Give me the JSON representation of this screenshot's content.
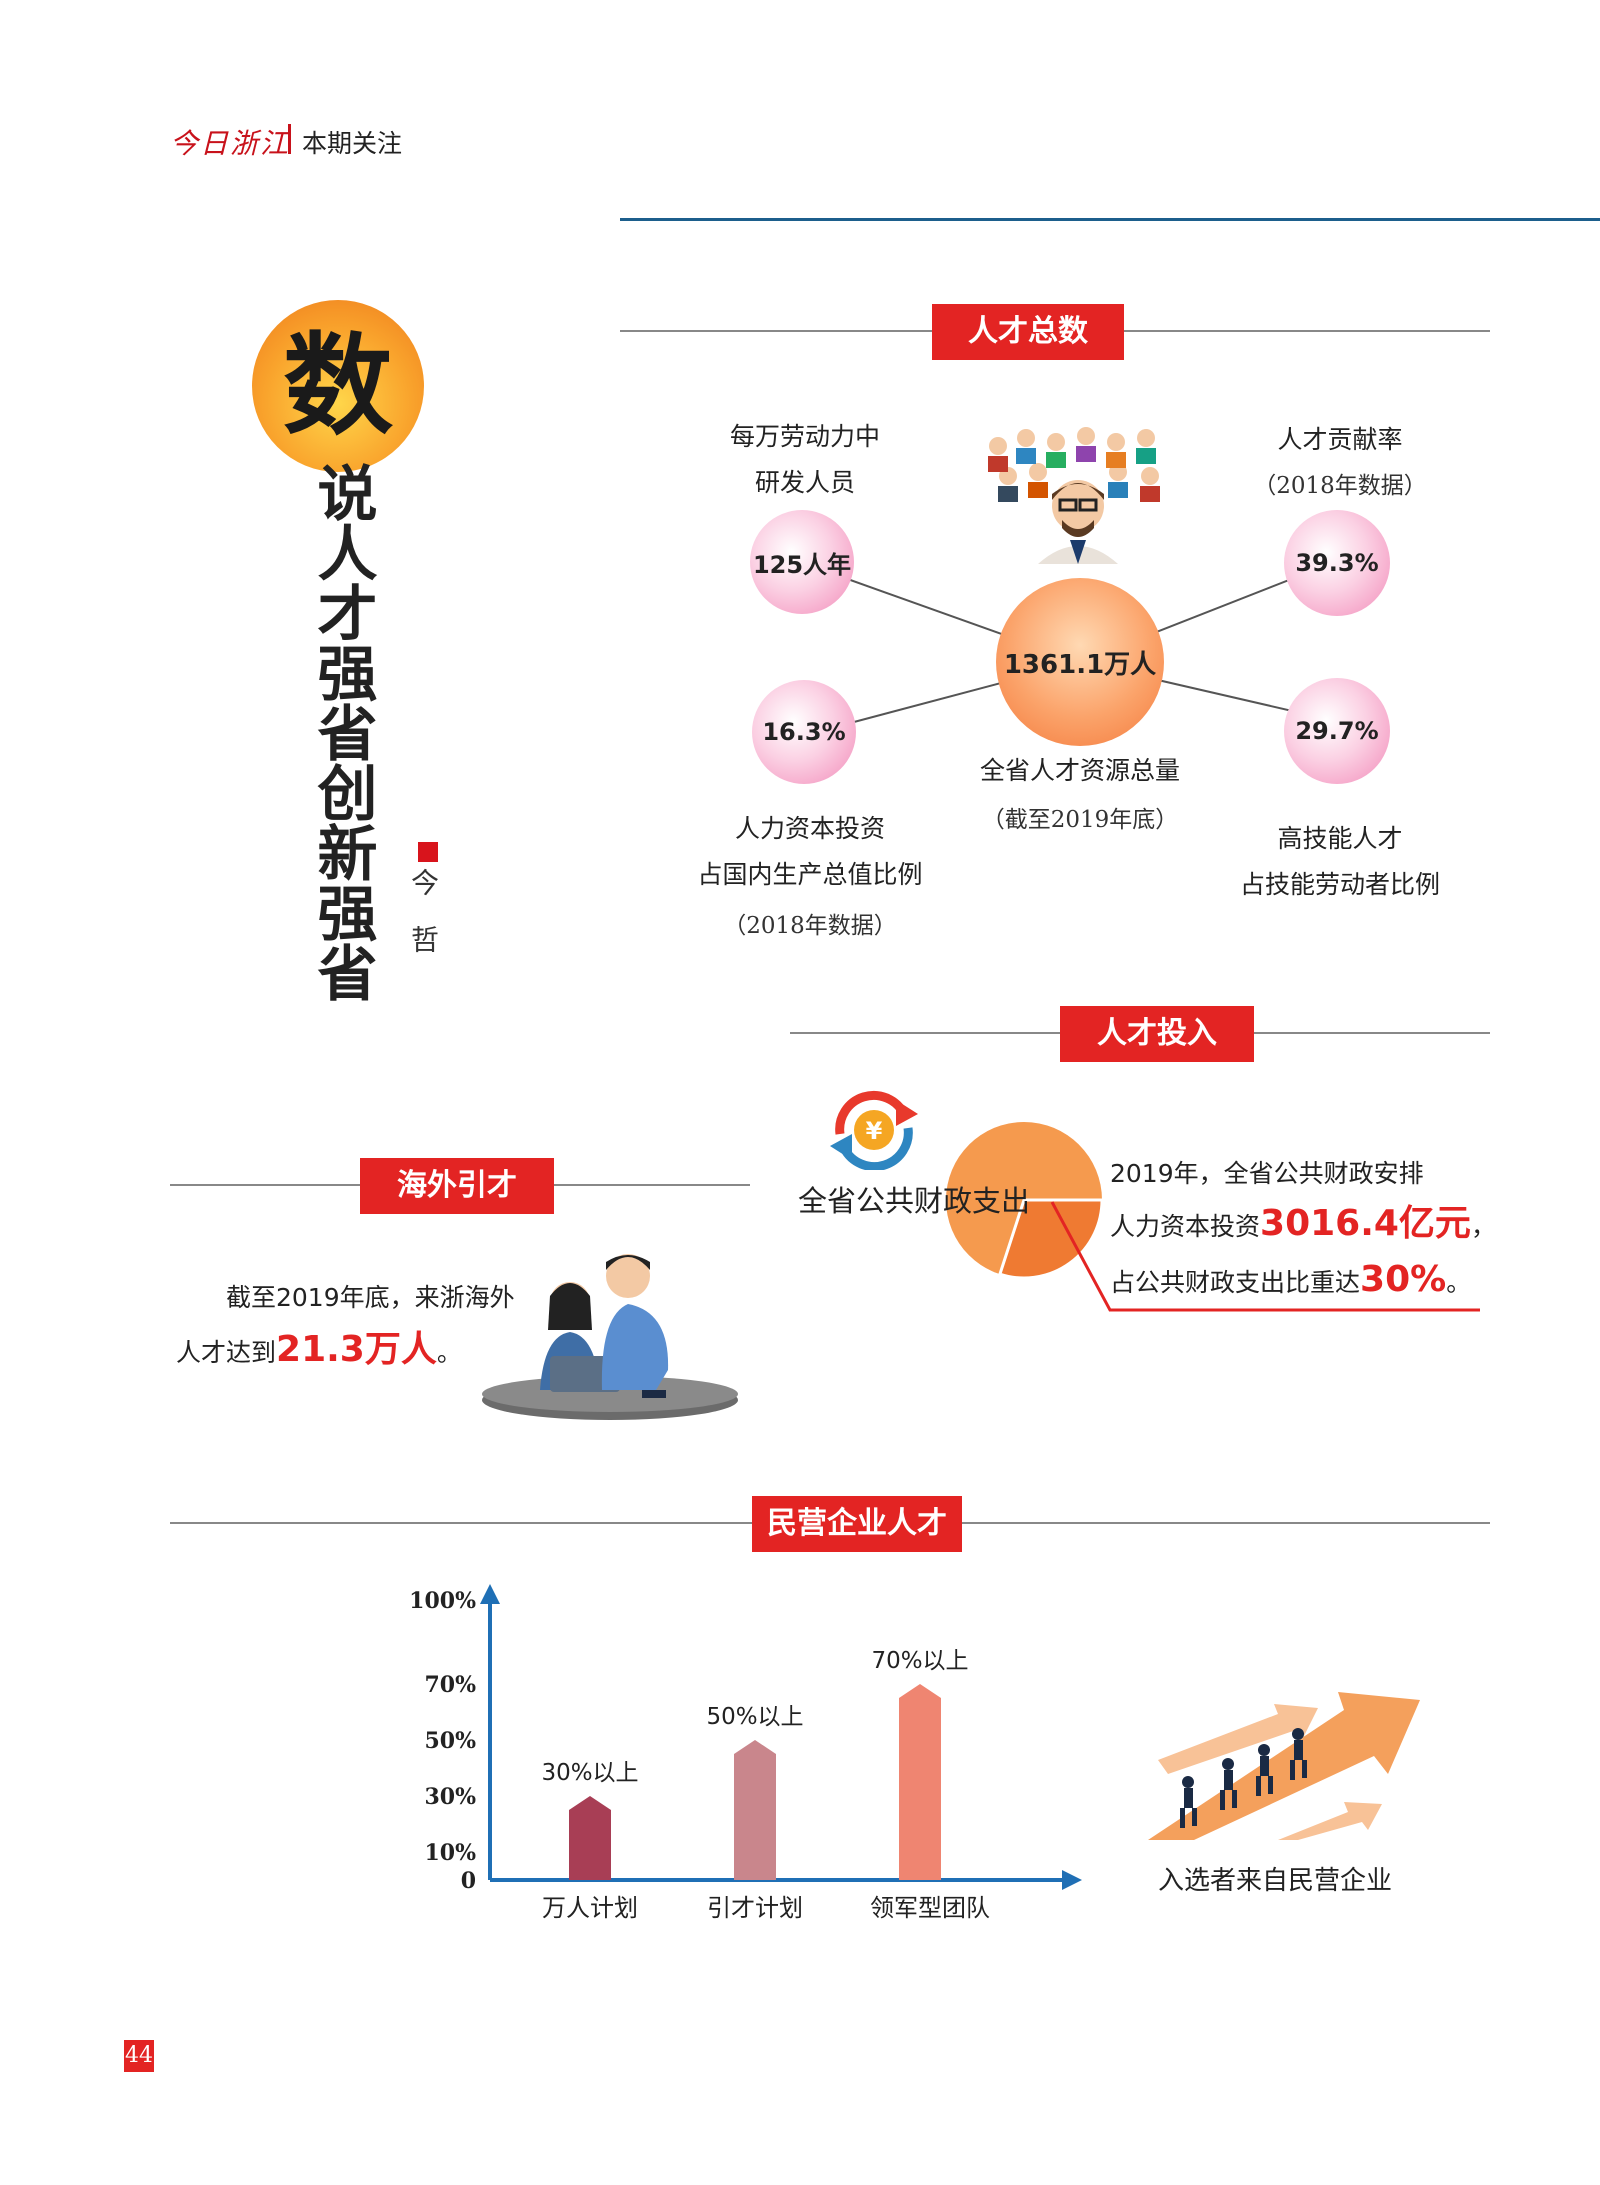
{
  "header": {
    "brand": "今日浙江",
    "section": "本期关注"
  },
  "title": {
    "big_char": "数",
    "rest": "说人才强省创新强省",
    "author_label": "今 哲"
  },
  "talent_total": {
    "section_label": "人才总数",
    "center": {
      "value": "1361.1万人",
      "caption": "全省人才资源总量",
      "sub": "（截至2019年底）"
    },
    "rd_staff": {
      "value": "125人年",
      "caption_line1": "每万劳动力中",
      "caption_line2": "研发人员"
    },
    "contribution": {
      "value": "39.3%",
      "caption": "人才贡献率",
      "sub": "（2018年数据）"
    },
    "human_capital": {
      "value": "16.3%",
      "caption_line1": "人力资本投资",
      "caption_line2": "占国内生产总值比例",
      "sub": "（2018年数据）"
    },
    "high_skill": {
      "value": "29.7%",
      "caption_line1": "高技能人才",
      "caption_line2": "占技能劳动者比例"
    }
  },
  "investment": {
    "section_label": "人才投入",
    "pie_label": "全省公共财政支出",
    "pie_share": 0.3,
    "line1": "2019年，全省公共财政安排",
    "line2_prefix": "人力资本投资",
    "line2_value": "3016.4亿元",
    "line2_suffix": "，",
    "line3_prefix": "占公共财政支出比重达",
    "line3_value": "30%",
    "line3_suffix": "。",
    "icon": "yen-icon",
    "colors": {
      "pie_main": "#f59a4e",
      "pie_slice": "#ef7a32"
    }
  },
  "overseas": {
    "section_label": "海外引才",
    "line1": "截至2019年底，来浙海外",
    "line2_prefix": "人才达到",
    "line2_value": "21.3万人",
    "line2_suffix": "。"
  },
  "private_enterprise": {
    "section_label": "民营企业人才",
    "side_caption": "入选者来自民营企业"
  },
  "chart_data": {
    "type": "bar",
    "categories": [
      "万人计划",
      "引才计划",
      "领军型团队"
    ],
    "values": [
      30,
      50,
      70
    ],
    "data_labels": [
      "30%以上",
      "50%以上",
      "70%以上"
    ],
    "y_ticks": [
      "0",
      "10%",
      "30%",
      "50%",
      "70%",
      "100%"
    ],
    "y_tick_values": [
      0,
      10,
      30,
      50,
      70,
      100
    ],
    "ylim": [
      0,
      100
    ],
    "bar_colors": [
      "#a83e55",
      "#c9868c",
      "#ef8571"
    ],
    "axis_color": "#1f6fb5"
  },
  "page_number": "44"
}
